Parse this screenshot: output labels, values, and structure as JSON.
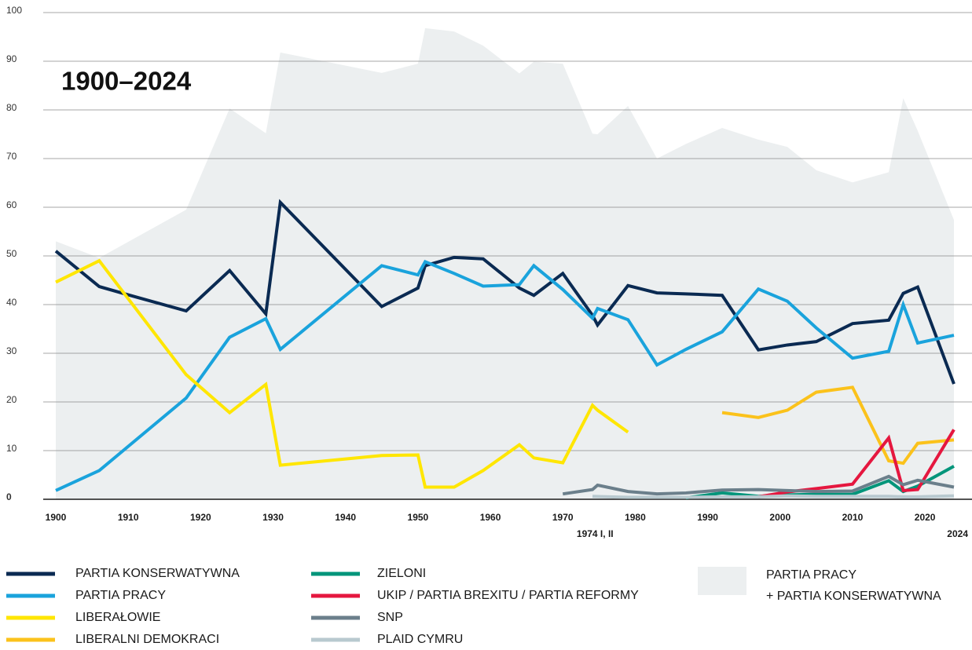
{
  "chart_data": {
    "type": "line",
    "title": "1900–2024",
    "xlim": [
      1900,
      2024
    ],
    "ylim": [
      0,
      100
    ],
    "xticks": [
      1900,
      1910,
      1920,
      1930,
      1940,
      1950,
      1960,
      1970,
      1980,
      1990,
      2000,
      2010,
      2020
    ],
    "xticks_secondary": [
      {
        "value": 1974.45,
        "label": "1974 I, II"
      },
      {
        "value": 2024,
        "label": "2024"
      }
    ],
    "yticks": [
      0,
      10,
      20,
      30,
      40,
      50,
      60,
      70,
      80,
      90,
      100
    ],
    "grid": true,
    "series": [
      {
        "name": [
          "PARTIA PRACY",
          "+ PARTIA KONSERWATYWNA"
        ],
        "type": "area",
        "color": "#eceff0",
        "x": [
          1900,
          1906,
          1918,
          1924,
          1929,
          1931,
          1945,
          1950,
          1951,
          1955,
          1959,
          1964,
          1966,
          1970,
          1974.1,
          1974.8,
          1979,
          1983,
          1987,
          1992,
          1997,
          2001,
          2005,
          2010,
          2015,
          2017,
          2019,
          2024
        ],
        "values": [
          53,
          49.6,
          59.5,
          80.3,
          75.2,
          91.8,
          87.6,
          89.5,
          96.8,
          96.1,
          93.2,
          87.5,
          89.9,
          89.5,
          75.1,
          75,
          80.8,
          70,
          73,
          76.3,
          73.9,
          72.4,
          67.6,
          65.1,
          67.2,
          82.4,
          75.7,
          57.4
        ]
      },
      {
        "name": "PARTIA KONSERWATYWNA",
        "color": "#0a2a52",
        "x": [
          1900,
          1906,
          1910,
          1918,
          1924,
          1929,
          1931,
          1945,
          1950,
          1951,
          1955,
          1959,
          1964,
          1966,
          1970,
          1974.1,
          1974.8,
          1979,
          1983,
          1987,
          1992,
          1997,
          2001,
          2005,
          2010,
          2015,
          2017,
          2019,
          2024
        ],
        "values": [
          51,
          43.7,
          42,
          38.7,
          47,
          38.1,
          61,
          39.6,
          43.4,
          48,
          49.7,
          49.4,
          43.4,
          41.9,
          46.4,
          37.8,
          35.8,
          43.9,
          42.4,
          42.2,
          41.9,
          30.7,
          31.7,
          32.4,
          36.1,
          36.8,
          42.3,
          43.6,
          23.7
        ]
      },
      {
        "name": "PARTIA PRACY",
        "color": "#1aa3dc",
        "x": [
          1900,
          1906,
          1918,
          1924,
          1929,
          1931,
          1945,
          1950,
          1951,
          1955,
          1959,
          1964,
          1966,
          1970,
          1974.1,
          1974.8,
          1979,
          1983,
          1987,
          1992,
          1997,
          2001,
          2005,
          2010,
          2015,
          2017,
          2019,
          2024
        ],
        "values": [
          1.8,
          5.9,
          20.8,
          33.3,
          37.1,
          30.8,
          48,
          46.1,
          48.8,
          46.4,
          43.8,
          44.1,
          48,
          43.1,
          37.2,
          39.2,
          36.9,
          27.6,
          30.8,
          34.4,
          43.2,
          40.7,
          35.2,
          29,
          30.4,
          40,
          32.1,
          33.7
        ]
      },
      {
        "name": "LIBERAŁOWIE",
        "color": "#ffe600",
        "x": [
          1900,
          1906,
          1918,
          1924,
          1929,
          1931,
          1945,
          1950,
          1951,
          1955,
          1959,
          1964,
          1966,
          1970,
          1974.1,
          1974.8,
          1979
        ],
        "values": [
          44.6,
          49,
          25.6,
          17.8,
          23.6,
          7,
          9,
          9.1,
          2.5,
          2.5,
          5.9,
          11.2,
          8.5,
          7.5,
          19.3,
          18.3,
          13.8
        ]
      },
      {
        "name": "LIBERALNI DEMOKRACI",
        "color": "#fbc21b",
        "x": [
          1992,
          1997,
          2001,
          2005,
          2010,
          2015,
          2017,
          2019,
          2024
        ],
        "values": [
          17.8,
          16.8,
          18.3,
          22,
          23,
          7.9,
          7.4,
          11.5,
          12.2
        ]
      },
      {
        "name": "ZIELONI",
        "color": "#00957a",
        "x": [
          1987,
          1992,
          1997,
          2001,
          2005,
          2010,
          2015,
          2017,
          2019,
          2024
        ],
        "values": [
          0.3,
          1.3,
          0.6,
          0.9,
          1,
          1,
          3.8,
          1.6,
          2.7,
          6.8
        ]
      },
      {
        "name": "UKIP / PARTIA BREXITU / PARTIA REFORMY",
        "color": "#e5173f",
        "x": [
          1997,
          2001,
          2005,
          2010,
          2015,
          2017,
          2019,
          2024
        ],
        "values": [
          0.5,
          1.5,
          2.2,
          3.1,
          12.6,
          1.8,
          2,
          14.3
        ]
      },
      {
        "name": "SNP",
        "color": "#6b7f8b",
        "x": [
          1970,
          1974.1,
          1974.8,
          1979,
          1983,
          1987,
          1992,
          1997,
          2001,
          2005,
          2010,
          2015,
          2017,
          2019,
          2024
        ],
        "values": [
          1.1,
          2,
          2.9,
          1.6,
          1.1,
          1.3,
          1.9,
          2,
          1.8,
          1.6,
          1.7,
          4.7,
          3,
          3.9,
          2.5
        ]
      },
      {
        "name": "PLAID CYMRU",
        "color": "#b8c9cf",
        "x": [
          1974.1,
          1979,
          1983,
          1987,
          1992,
          1997,
          2001,
          2005,
          2010,
          2015,
          2017,
          2019,
          2024
        ],
        "values": [
          0.6,
          0.4,
          0.4,
          0.4,
          0.5,
          0.5,
          0.7,
          0.6,
          0.6,
          0.6,
          0.5,
          0.5,
          0.7
        ]
      }
    ]
  }
}
